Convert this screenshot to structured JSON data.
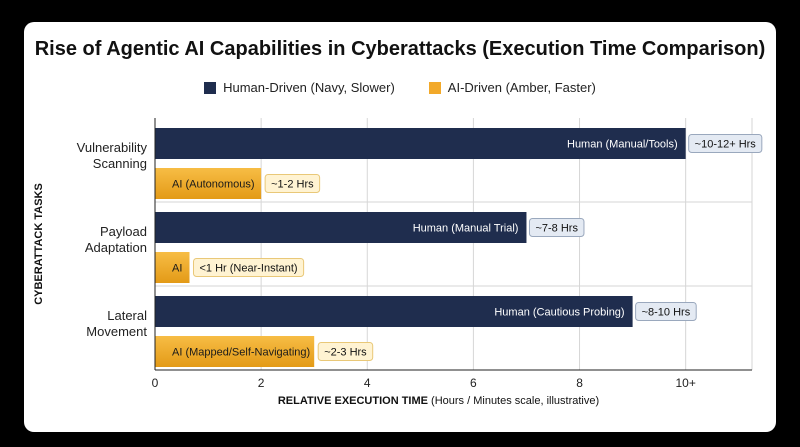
{
  "colors": {
    "human": "#1f2d4e",
    "ai_top": "#f6b63c",
    "ai_bottom": "#e39a17",
    "human_badge_bg": "#e4eaf3",
    "human_badge_border": "#9aa8bd",
    "ai_badge_bg": "#fff3d2",
    "ai_badge_border": "#e9c878"
  },
  "legend": {
    "human_label": "Human-Driven (Navy, Slower)",
    "ai_label": "AI-Driven (Amber, Faster)"
  },
  "chart_data": {
    "type": "bar",
    "orientation": "horizontal",
    "title": "Rise of Agentic AI Capabilities in Cyberattacks (Execution Time Comparison)",
    "ylabel": "CYBERATTACK TASKS",
    "xlabel_bold": "RELATIVE EXECUTION TIME",
    "xlabel_rest": " (Hours / Minutes scale, illustrative)",
    "xlim": [
      0,
      11.25
    ],
    "xticks": [
      0,
      2,
      4,
      6,
      8,
      10
    ],
    "xtick_labels": [
      "0",
      "2",
      "4",
      "6",
      "8",
      "10+"
    ],
    "grid": true,
    "legend_position": "top",
    "categories": [
      {
        "label_lines": [
          "Vulnerability",
          "Scanning"
        ]
      },
      {
        "label_lines": [
          "Payload",
          "Adaptation"
        ]
      },
      {
        "label_lines": [
          "Lateral",
          "Movement"
        ]
      }
    ],
    "series": [
      {
        "name": "Human-Driven (Navy, Slower)",
        "values": [
          10,
          7,
          9
        ],
        "bar_labels": [
          "Human (Manual/Tools)",
          "Human (Manual Trial)",
          "Human (Cautious Probing)"
        ],
        "badges": [
          "~10-12+ Hrs",
          "~7-8 Hrs",
          "~8-10 Hrs"
        ]
      },
      {
        "name": "AI-Driven (Amber, Faster)",
        "values": [
          2,
          0.65,
          3
        ],
        "bar_labels": [
          "AI (Autonomous)",
          "AI",
          "AI (Mapped/Self-Navigating)"
        ],
        "badges": [
          "~1-2 Hrs",
          "<1 Hr (Near-Instant)",
          "~2-3 Hrs"
        ]
      }
    ]
  }
}
